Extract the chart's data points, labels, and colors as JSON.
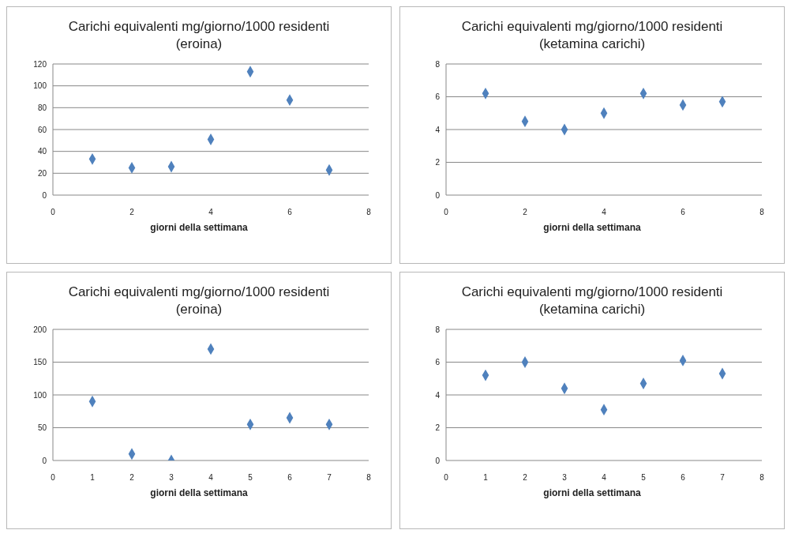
{
  "chart_data": [
    {
      "type": "scatter",
      "title": "Carichi equivalenti mg/giorno/1000 residenti (eroina)",
      "xlabel": "giorni della settimana",
      "x": [
        1,
        2,
        3,
        4,
        5,
        6,
        7
      ],
      "values": [
        33,
        25,
        26,
        51,
        113,
        87,
        23
      ],
      "color": "#4f81bd",
      "xlim": [
        0,
        8
      ],
      "xticks": [
        0,
        2,
        4,
        6,
        8
      ],
      "ylim": [
        0,
        120
      ],
      "yticks": [
        0,
        20,
        40,
        60,
        80,
        100,
        120
      ],
      "grid": "y",
      "marker": "diamond"
    },
    {
      "type": "scatter",
      "title": "Carichi equivalenti mg/giorno/1000 residenti (ketamina carichi)",
      "xlabel": "giorni della settimana",
      "x": [
        1,
        2,
        3,
        4,
        5,
        6,
        7
      ],
      "values": [
        6.2,
        4.5,
        4.0,
        5.0,
        6.2,
        5.5,
        5.7
      ],
      "color": "#4f81bd",
      "xlim": [
        0,
        8
      ],
      "xticks": [
        0,
        2,
        4,
        6,
        8
      ],
      "ylim": [
        0,
        8
      ],
      "yticks": [
        0,
        2,
        4,
        6,
        8
      ],
      "grid": "y",
      "marker": "diamond"
    },
    {
      "type": "scatter",
      "title": "Carichi equivalenti mg/giorno/1000 residenti (eroina)",
      "xlabel": "giorni della settimana",
      "x": [
        1,
        2,
        3,
        4,
        5,
        6,
        7
      ],
      "values": [
        90,
        10,
        0,
        170,
        55,
        65,
        55
      ],
      "color": "#4f81bd",
      "xlim": [
        0,
        8
      ],
      "xticks": [
        0,
        1,
        2,
        3,
        4,
        5,
        6,
        7,
        8
      ],
      "ylim": [
        0,
        200
      ],
      "yticks": [
        0,
        50,
        100,
        150,
        200
      ],
      "grid": "y",
      "marker": "diamond"
    },
    {
      "type": "scatter",
      "title": "Carichi equivalenti mg/giorno/1000 residenti (ketamina carichi)",
      "xlabel": "giorni della settimana",
      "x": [
        1,
        2,
        3,
        4,
        5,
        6,
        7
      ],
      "values": [
        5.2,
        6.0,
        4.4,
        3.1,
        4.7,
        6.1,
        5.3
      ],
      "color": "#4f81bd",
      "xlim": [
        0,
        8
      ],
      "xticks": [
        0,
        1,
        2,
        3,
        4,
        5,
        6,
        7,
        8
      ],
      "ylim": [
        0,
        8
      ],
      "yticks": [
        0,
        2,
        4,
        6,
        8
      ],
      "grid": "y",
      "marker": "diamond"
    }
  ]
}
